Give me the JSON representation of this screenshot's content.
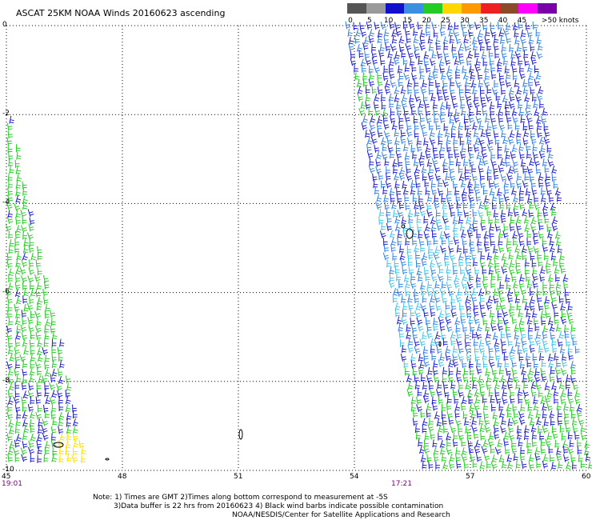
{
  "title": "ASCAT 25KM NOAA Winds 20160623 ascending",
  "legend": {
    "bins": [
      {
        "label": "0",
        "color": "#555555"
      },
      {
        "label": "5",
        "color": "#9a9a9a"
      },
      {
        "label": "10",
        "color": "#1111cc"
      },
      {
        "label": "15",
        "color": "#3a8fe0"
      },
      {
        "label": "20",
        "color": "#22cc22"
      },
      {
        "label": "25",
        "color": "#ffd700"
      },
      {
        "label": "30",
        "color": "#ff9900"
      },
      {
        "label": "35",
        "color": "#ee2020"
      },
      {
        "label": "40",
        "color": "#8b4a2a"
      },
      {
        "label": "45",
        "color": "#ff00ff"
      },
      {
        "label": ">50 knots",
        "color": "#7a00aa"
      }
    ]
  },
  "axes": {
    "y_labels": [
      "0",
      "-2",
      "-4",
      "-6",
      "-8",
      "-10"
    ],
    "x_labels": [
      "45",
      "48",
      "51",
      "54",
      "57",
      "60"
    ]
  },
  "times": {
    "left_swath": "19:01",
    "right_swath": "17:21"
  },
  "notes": {
    "line1": "Note: 1) Times are GMT 2)Times along bottom correspond to measurement at -5S",
    "line2": "3)Data buffer is 22 hrs from 20160623 4) Black wind barbs indicate possible contamination",
    "line3": "NOAA/NESDIS/Center for Satellite Applications and Research"
  },
  "colors": {
    "blue": "#1a1acc",
    "light_blue": "#2f7fe0",
    "cyan": "#3fc3e8",
    "green": "#22cc22",
    "yellow": "#ffdd00",
    "black": "#000000"
  }
}
